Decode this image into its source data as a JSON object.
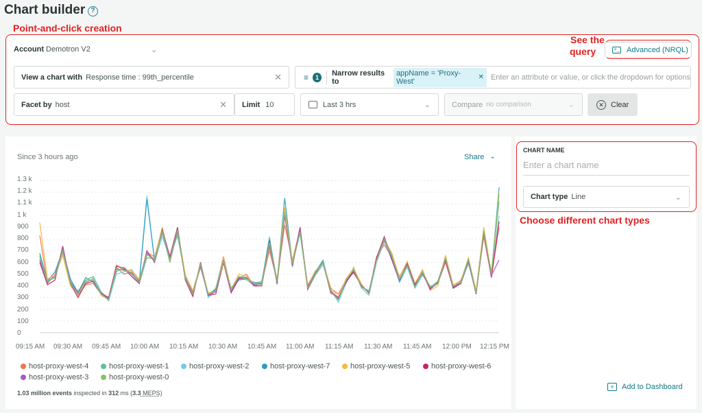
{
  "header": {
    "title": "Chart builder",
    "help_icon": "question-circle-icon"
  },
  "annotations": {
    "creation": "Point-and-click creation",
    "query_line1": "See the",
    "query_line2": "query",
    "chart_types": "Choose different chart types"
  },
  "builder": {
    "account_label": "Account",
    "account_value": "Demotron V2",
    "advanced_button": "Advanced (NRQL)",
    "view_label": "View a chart with",
    "view_value": "Response time : 99th_percentile",
    "filter_count": "1",
    "narrow_label": "Narrow results to",
    "narrow_chip": "appName = 'Proxy-West'",
    "narrow_placeholder": "Enter an attribute or value, or click the dropdown for options",
    "facet_label": "Facet by",
    "facet_value": "host",
    "limit_label": "Limit",
    "limit_value": "10",
    "time_value": "Last 3 hrs",
    "compare_label": "Compare",
    "compare_value": "no comparison",
    "clear_button": "Clear"
  },
  "chart_panel": {
    "since": "Since 3 hours ago",
    "share": "Share",
    "footer_count": "1.03 million events",
    "footer_mid": " inspected in ",
    "footer_ms": "312",
    "footer_ms_unit": " ms (",
    "footer_meps": "3.3",
    "footer_meps_unit": " MEPS",
    "footer_end": ")"
  },
  "side_panel": {
    "name_label": "CHART NAME",
    "name_placeholder": "Enter a chart name",
    "type_label": "Chart type",
    "type_value": "Line",
    "add_dashboard": "Add to Dashboard"
  },
  "chart_data": {
    "type": "line",
    "y_ticks": [
      "1.3 k",
      "1.2 k",
      "1.1 k",
      "1 k",
      "900",
      "800",
      "700",
      "600",
      "500",
      "400",
      "300",
      "200",
      "100",
      "0"
    ],
    "x_ticks": [
      "09:15 AM",
      "09:30 AM",
      "09:45 AM",
      "10:00 AM",
      "10:15 AM",
      "10:30 AM",
      "10:45 AM",
      "11:00 AM",
      "11:15 AM",
      "11:30 AM",
      "11:45 AM",
      "12:00 PM",
      "12:15 PM"
    ],
    "ylim": [
      0,
      1300
    ],
    "x": [
      "09:15",
      "09:18",
      "09:21",
      "09:24",
      "09:27",
      "09:30",
      "09:33",
      "09:36",
      "09:39",
      "09:42",
      "09:45",
      "09:48",
      "09:51",
      "09:54",
      "09:57",
      "10:00",
      "10:03",
      "10:06",
      "10:09",
      "10:12",
      "10:15",
      "10:18",
      "10:21",
      "10:24",
      "10:27",
      "10:30",
      "10:33",
      "10:36",
      "10:39",
      "10:42",
      "10:45",
      "10:48",
      "10:51",
      "10:54",
      "10:57",
      "11:00",
      "11:03",
      "11:06",
      "11:09",
      "11:12",
      "11:15",
      "11:18",
      "11:21",
      "11:24",
      "11:27",
      "11:30",
      "11:33",
      "11:36",
      "11:39",
      "11:42",
      "11:45",
      "11:48",
      "11:51",
      "11:54",
      "11:57",
      "12:00",
      "12:03",
      "12:06",
      "12:09",
      "12:12",
      "12:15"
    ],
    "series": [
      {
        "name": "host-proxy-west-4",
        "color": "#f2714e",
        "values": [
          830,
          420,
          500,
          680,
          430,
          320,
          410,
          420,
          330,
          300,
          560,
          500,
          520,
          450,
          680,
          650,
          880,
          620,
          860,
          470,
          350,
          560,
          320,
          370,
          650,
          360,
          460,
          500,
          400,
          420,
          700,
          450,
          920,
          620,
          880,
          400,
          500,
          600,
          380,
          330,
          450,
          510,
          410,
          340,
          650,
          750,
          640,
          480,
          600,
          420,
          530,
          380,
          420,
          600,
          390,
          450,
          610,
          350,
          820,
          480,
          900
        ]
      },
      {
        "name": "host-proxy-west-1",
        "color": "#5cc0a3",
        "values": [
          660,
          450,
          470,
          720,
          440,
          350,
          450,
          480,
          350,
          280,
          520,
          560,
          500,
          420,
          640,
          630,
          850,
          650,
          830,
          480,
          330,
          590,
          310,
          380,
          610,
          380,
          480,
          470,
          420,
          440,
          760,
          430,
          1000,
          580,
          860,
          380,
          520,
          620,
          350,
          300,
          430,
          540,
          390,
          360,
          620,
          790,
          670,
          450,
          580,
          400,
          500,
          390,
          440,
          640,
          380,
          430,
          590,
          340,
          840,
          520,
          1120
        ]
      },
      {
        "name": "host-proxy-west-2",
        "color": "#6fcbe6",
        "values": [
          630,
          430,
          480,
          690,
          410,
          360,
          420,
          470,
          350,
          270,
          500,
          520,
          540,
          440,
          1170,
          600,
          820,
          640,
          900,
          460,
          320,
          600,
          300,
          360,
          620,
          350,
          470,
          450,
          410,
          430,
          820,
          410,
          1060,
          560,
          900,
          370,
          490,
          580,
          370,
          260,
          420,
          560,
          380,
          320,
          600,
          780,
          620,
          430,
          560,
          380,
          490,
          400,
          420,
          650,
          400,
          420,
          600,
          330,
          860,
          490,
          1000
        ]
      },
      {
        "name": "host-proxy-west-7",
        "color": "#2c9cbd",
        "values": [
          680,
          440,
          520,
          700,
          460,
          340,
          470,
          430,
          330,
          290,
          540,
          540,
          510,
          430,
          1140,
          620,
          870,
          600,
          870,
          470,
          340,
          570,
          330,
          370,
          630,
          370,
          450,
          460,
          430,
          420,
          800,
          440,
          1150,
          590,
          850,
          390,
          510,
          610,
          360,
          280,
          440,
          530,
          400,
          350,
          630,
          810,
          650,
          440,
          580,
          390,
          520,
          380,
          430,
          630,
          390,
          440,
          620,
          350,
          880,
          500,
          1240
        ]
      },
      {
        "name": "host-proxy-west-5",
        "color": "#f5b944",
        "values": [
          940,
          460,
          490,
          660,
          400,
          330,
          430,
          460,
          320,
          280,
          580,
          530,
          530,
          460,
          660,
          640,
          900,
          610,
          880,
          500,
          360,
          580,
          340,
          350,
          640,
          370,
          500,
          480,
          420,
          410,
          720,
          460,
          1070,
          600,
          870,
          410,
          530,
          590,
          390,
          300,
          460,
          550,
          420,
          330,
          640,
          800,
          680,
          470,
          610,
          420,
          540,
          360,
          400,
          660,
          410,
          440,
          640,
          360,
          900,
          500,
          1200
        ]
      },
      {
        "name": "host-proxy-west-6",
        "color": "#c2256b",
        "values": [
          600,
          410,
          450,
          740,
          420,
          300,
          420,
          440,
          340,
          300,
          570,
          550,
          480,
          420,
          700,
          600,
          880,
          650,
          900,
          450,
          310,
          600,
          320,
          330,
          600,
          340,
          460,
          470,
          400,
          400,
          780,
          420,
          1010,
          570,
          900,
          370,
          500,
          600,
          340,
          300,
          430,
          520,
          400,
          340,
          640,
          820,
          620,
          450,
          590,
          410,
          510,
          370,
          430,
          620,
          380,
          420,
          620,
          330,
          860,
          470,
          950
        ]
      },
      {
        "name": "host-proxy-west-3",
        "color": "#a55bc7",
        "values": [
          620,
          430,
          480,
          720,
          430,
          340,
          440,
          450,
          340,
          290,
          540,
          540,
          500,
          440,
          680,
          620,
          860,
          630,
          870,
          470,
          340,
          580,
          320,
          350,
          620,
          360,
          470,
          470,
          410,
          420,
          740,
          430,
          1000,
          580,
          880,
          390,
          510,
          600,
          360,
          290,
          440,
          540,
          400,
          340,
          620,
          790,
          640,
          450,
          590,
          400,
          510,
          380,
          420,
          630,
          390,
          430,
          610,
          340,
          850,
          490,
          620
        ]
      },
      {
        "name": "host-proxy-west-0",
        "color": "#86c26a",
        "values": [
          650,
          440,
          470,
          700,
          420,
          330,
          440,
          450,
          330,
          280,
          550,
          530,
          510,
          430,
          670,
          610,
          870,
          620,
          880,
          460,
          330,
          590,
          330,
          360,
          610,
          370,
          480,
          460,
          420,
          410,
          770,
          440,
          1030,
          590,
          860,
          380,
          500,
          600,
          350,
          280,
          450,
          540,
          390,
          350,
          620,
          800,
          650,
          460,
          570,
          390,
          520,
          390,
          420,
          640,
          400,
          430,
          630,
          340,
          870,
          500,
          1180
        ]
      }
    ]
  }
}
